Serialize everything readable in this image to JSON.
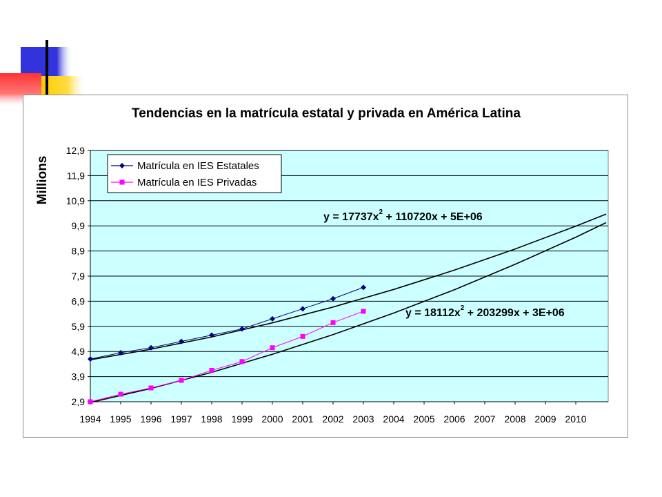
{
  "chart_data": {
    "type": "line",
    "title": "Tendencias en la matrícula estatal y privada en América Latina",
    "ylabel": "Millions",
    "xlabel": "",
    "x_categories": [
      "1994",
      "1995",
      "1996",
      "1997",
      "1998",
      "1999",
      "2000",
      "2001",
      "2002",
      "2003",
      "2004",
      "2005",
      "2006",
      "2007",
      "2008",
      "2009",
      "2010"
    ],
    "yticks": [
      "2,9",
      "3,9",
      "4,9",
      "5,9",
      "6,9",
      "7,9",
      "8,9",
      "9,9",
      "10,9",
      "11,9",
      "12,9"
    ],
    "ylim": [
      2.9,
      12.9
    ],
    "grid": true,
    "legend_position": "top-left",
    "plot_background": "#ccffff",
    "series": [
      {
        "name": "Matrícula en IES Estatales",
        "marker": "diamond",
        "color": "#000080",
        "values": [
          4.6,
          4.85,
          5.05,
          5.3,
          5.55,
          5.8,
          6.2,
          6.6,
          7.0,
          7.45
        ]
      },
      {
        "name": "Matrícula en IES Privadas",
        "marker": "square",
        "color": "#ff00ff",
        "values": [
          2.9,
          3.2,
          3.45,
          3.75,
          4.15,
          4.5,
          5.05,
          5.5,
          6.05,
          6.5
        ]
      }
    ],
    "trendlines": [
      {
        "series": "Matrícula en IES Estatales",
        "equation_parts": [
          "y = 17737x",
          "2",
          " + 110720x + 5E+06"
        ],
        "points": [
          [
            1994,
            4.57
          ],
          [
            1996,
            4.99
          ],
          [
            1998,
            5.48
          ],
          [
            2000,
            6.04
          ],
          [
            2002,
            6.67
          ],
          [
            2004,
            7.37
          ],
          [
            2006,
            8.14
          ],
          [
            2008,
            8.98
          ],
          [
            2010,
            9.89
          ],
          [
            2011,
            10.37
          ]
        ]
      },
      {
        "series": "Matrícula en IES Privadas",
        "equation_parts": [
          "y = 18112x",
          "2",
          " + 203299x + 3E+06"
        ],
        "points": [
          [
            1994,
            2.87
          ],
          [
            1996,
            3.43
          ],
          [
            1998,
            4.07
          ],
          [
            2000,
            4.79
          ],
          [
            2002,
            5.57
          ],
          [
            2004,
            6.43
          ],
          [
            2006,
            7.36
          ],
          [
            2008,
            8.37
          ],
          [
            2010,
            9.45
          ],
          [
            2011,
            10.03
          ]
        ]
      }
    ]
  }
}
